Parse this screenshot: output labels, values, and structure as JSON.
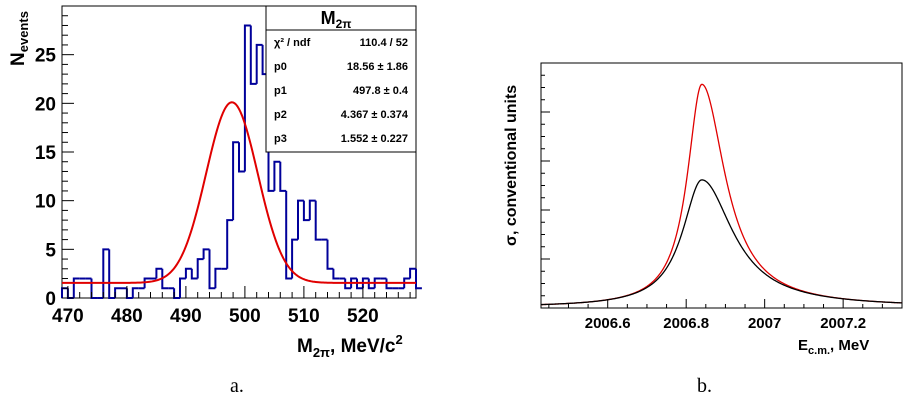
{
  "chart_data": [
    {
      "type": "histogram",
      "panel_label": "a.",
      "xlabel": "M",
      "xlabel_sub": "2π",
      "xlabel_unit": ", MeV/c",
      "xlabel_sup": "2",
      "ylabel": "N",
      "ylabel_sub": "events",
      "xlim": [
        469,
        529
      ],
      "ylim": [
        0,
        30
      ],
      "xticks": [
        470,
        480,
        490,
        500,
        510,
        520
      ],
      "yticks": [
        0,
        5,
        10,
        15,
        20,
        25
      ],
      "bin_width": 1,
      "bin_start": 469,
      "counts": [
        1,
        0,
        2,
        2,
        2,
        0,
        0,
        5,
        0,
        1,
        1,
        0,
        1,
        1,
        2,
        2,
        3,
        1,
        1,
        0,
        2,
        3,
        2,
        4,
        5,
        1,
        3,
        3,
        8,
        16,
        13,
        28,
        22,
        26,
        23,
        11,
        14,
        11,
        2,
        6,
        10,
        8,
        10,
        6,
        6,
        3,
        2,
        2,
        1,
        2,
        1,
        2,
        1,
        2,
        2,
        1,
        1,
        1,
        2,
        3,
        1
      ],
      "fit": {
        "function": "gaussian+constant",
        "p0": 18.56,
        "p1": 497.8,
        "p2": 4.367,
        "p3": 1.552
      },
      "line_color": "#00009a",
      "fit_color": "#e00000",
      "stats_box": {
        "title": "M",
        "title_sub": "2π",
        "rows": [
          {
            "label": "χ² / ndf",
            "value": "110.4 / 52"
          },
          {
            "label": "p0",
            "value": "18.56 ± 1.86"
          },
          {
            "label": "p1",
            "value": "497.8 ± 0.4"
          },
          {
            "label": "p2",
            "value": "4.367 ± 0.374"
          },
          {
            "label": "p3",
            "value": "1.552 ± 0.227"
          }
        ]
      }
    },
    {
      "type": "line",
      "panel_label": "b.",
      "xlabel": "E",
      "xlabel_sub": "c.m.",
      "xlabel_unit": ", MeV",
      "ylabel": "σ, conventional units",
      "xlim": [
        2006.43,
        2007.35
      ],
      "xticks": [
        2006.6,
        2006.8,
        2007,
        2007.2
      ],
      "xtick_labels": [
        "2006.6",
        "2006.8",
        "2007",
        "2007.2"
      ],
      "peak_x": 2006.84,
      "series": [
        {
          "color": "#e00000",
          "peak_height": 0.91,
          "width": 0.045,
          "background": 0.003
        },
        {
          "color": "#000000",
          "peak_height": 0.52,
          "width": 0.06,
          "background": 0.003
        }
      ]
    }
  ]
}
